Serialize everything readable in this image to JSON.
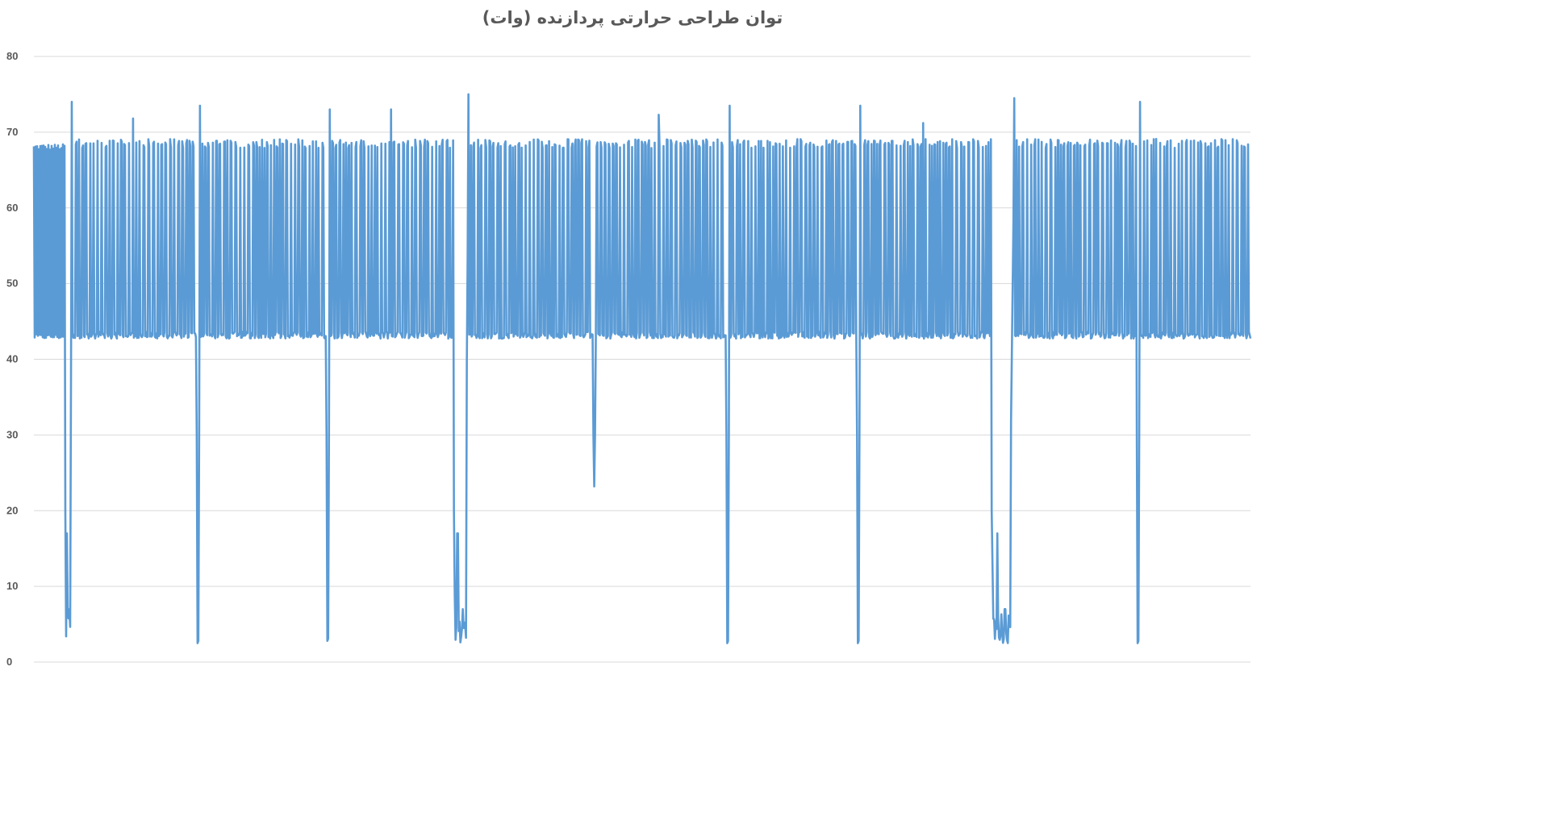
{
  "chart_data": {
    "type": "line",
    "title": "توان طراحی حرارتی پردازنده (وات)",
    "xlabel": "",
    "ylabel": "",
    "ylim": [
      0,
      80
    ],
    "yticks": [
      0,
      10,
      20,
      30,
      40,
      50,
      60,
      70,
      80
    ],
    "grid": true,
    "legend": "none",
    "x_tick_labels": false,
    "color": "#5b9bd5",
    "baseline_watts": 43,
    "peak_watts": 68.5,
    "n_points": 1510,
    "series": [
      {
        "segments": [
          {
            "x_range": [
              0,
              39
            ],
            "pattern": "dense_oscillation",
            "low": 43,
            "high": 68
          },
          {
            "x_range": [
              39,
              48
            ],
            "pattern": "deep_drop",
            "min": 2.5,
            "spike_max": 74
          },
          {
            "x_range": [
              48,
              202
            ],
            "pattern": "regular_pulses",
            "low": 43,
            "high": 68.5
          },
          {
            "x_range": [
              202,
              207
            ],
            "pattern": "deep_drop",
            "min": 2.5,
            "spike_max": 73.5
          },
          {
            "x_range": [
              207,
              363
            ],
            "pattern": "regular_pulses",
            "low": 43,
            "high": 68.5
          },
          {
            "x_range": [
              363,
              368
            ],
            "pattern": "deep_drop",
            "min": 2.8,
            "spike_max": 73
          },
          {
            "x_range": [
              368,
              521
            ],
            "pattern": "regular_pulses",
            "low": 43,
            "high": 68.5
          },
          {
            "x_range": [
              521,
              540
            ],
            "pattern": "deep_drop",
            "min": 2.5,
            "spike_max": 75
          },
          {
            "x_range": [
              540,
              859
            ],
            "pattern": "regular_pulses",
            "low": 43,
            "high": 68.5
          },
          {
            "x_range": [
              859,
              864
            ],
            "pattern": "deep_drop",
            "min": 2.5,
            "spike_max": 73.5
          },
          {
            "x_range": [
              864,
              1021
            ],
            "pattern": "regular_pulses",
            "low": 43,
            "high": 68.5
          },
          {
            "x_range": [
              1021,
              1026
            ],
            "pattern": "deep_drop",
            "min": 2.5,
            "spike_max": 73.5
          },
          {
            "x_range": [
              1026,
              1188
            ],
            "pattern": "regular_pulses",
            "low": 43,
            "high": 68.5
          },
          {
            "x_range": [
              1188,
              1217
            ],
            "pattern": "deep_drop",
            "min": 2.5,
            "spike_max": 74.5
          },
          {
            "x_range": [
              1217,
              1368
            ],
            "pattern": "regular_pulses",
            "low": 43,
            "high": 68.5
          },
          {
            "x_range": [
              1368,
              1373
            ],
            "pattern": "deep_drop",
            "min": 2.5,
            "spike_max": 74
          },
          {
            "x_range": [
              1373,
              1510
            ],
            "pattern": "regular_pulses",
            "low": 43,
            "high": 68.5
          }
        ],
        "partial_drops": [
          {
            "x": 695,
            "min": 23.2
          }
        ],
        "notable_spikes": [
          {
            "x": 123,
            "y": 71.8
          },
          {
            "x": 443,
            "y": 73
          },
          {
            "x": 775,
            "y": 72.3
          },
          {
            "x": 1103,
            "y": 71.2
          }
        ]
      }
    ]
  }
}
